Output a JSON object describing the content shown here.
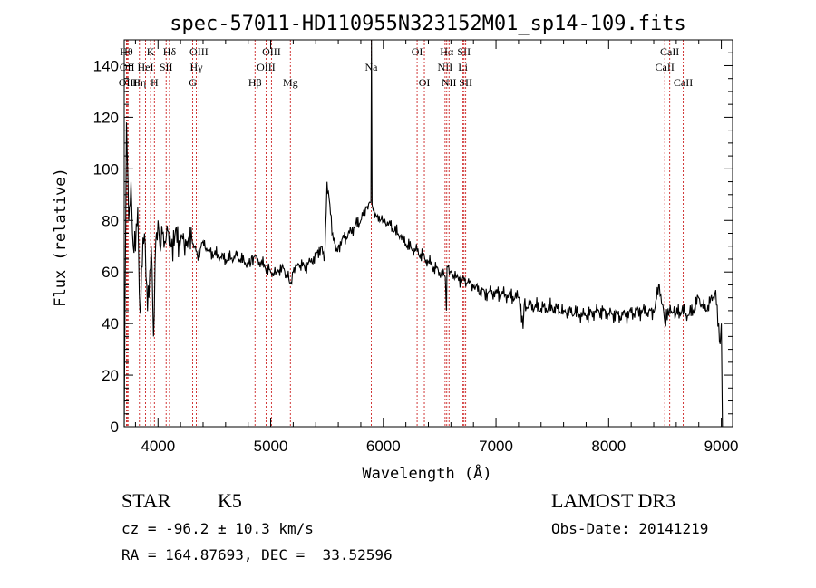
{
  "chart_data": {
    "type": "line",
    "title": "spec-57011-HD110955N323152M01_sp14-109.fits",
    "xlabel": "Wavelength (Å)",
    "ylabel": "Flux (relative)",
    "xlim": [
      3700,
      9100
    ],
    "ylim": [
      0,
      150
    ],
    "xticks": [
      4000,
      5000,
      6000,
      7000,
      8000,
      9000
    ],
    "yticks": [
      0,
      20,
      40,
      60,
      80,
      100,
      120,
      140
    ],
    "series": [
      {
        "name": "flux",
        "x": [
          3700,
          3720,
          3740,
          3760,
          3780,
          3800,
          3820,
          3840,
          3860,
          3880,
          3900,
          3920,
          3940,
          3960,
          3980,
          4000,
          4020,
          4040,
          4060,
          4080,
          4100,
          4150,
          4200,
          4250,
          4300,
          4350,
          4400,
          4450,
          4500,
          4600,
          4700,
          4800,
          4860,
          4900,
          4950,
          5000,
          5050,
          5100,
          5150,
          5180,
          5200,
          5250,
          5300,
          5350,
          5400,
          5450,
          5480,
          5500,
          5550,
          5580,
          5600,
          5650,
          5700,
          5750,
          5800,
          5850,
          5890,
          5895,
          5900,
          5910,
          5950,
          6000,
          6050,
          6100,
          6150,
          6200,
          6250,
          6300,
          6350,
          6400,
          6450,
          6500,
          6550,
          6560,
          6565,
          6600,
          6650,
          6700,
          6750,
          6800,
          6900,
          7000,
          7100,
          7200,
          7240,
          7250,
          7300,
          7400,
          7500,
          7600,
          7700,
          7800,
          7900,
          8000,
          8100,
          8200,
          8300,
          8400,
          8450,
          8500,
          8540,
          8600,
          8650,
          8700,
          8750,
          8800,
          8850,
          8900,
          8950,
          8990,
          9000,
          9010
        ],
        "values": [
          0,
          118,
          80,
          95,
          70,
          68,
          85,
          45,
          62,
          75,
          55,
          50,
          70,
          35,
          72,
          80,
          68,
          75,
          72,
          78,
          70,
          74,
          72,
          70,
          73,
          66,
          72,
          68,
          67,
          65,
          66,
          63,
          66,
          64,
          62,
          60,
          60,
          62,
          58,
          56,
          60,
          63,
          62,
          64,
          66,
          70,
          65,
          95,
          75,
          68,
          70,
          73,
          75,
          78,
          80,
          85,
          87,
          150,
          86,
          84,
          82,
          80,
          79,
          76,
          74,
          71,
          69,
          68,
          66,
          64,
          62,
          60,
          58,
          45,
          62,
          60,
          58,
          57,
          56,
          54,
          52,
          52,
          51,
          50,
          38,
          47,
          47,
          46,
          46,
          45,
          44,
          43,
          45,
          44,
          43,
          44,
          45,
          44,
          55,
          40,
          45,
          44,
          45,
          43,
          45,
          50,
          45,
          48,
          53,
          32,
          40,
          0
        ]
      }
    ],
    "line_markers": [
      {
        "x": 3720,
        "row": 0,
        "label": "Hθ"
      },
      {
        "x": 3726,
        "row": 1,
        "label": "OII"
      },
      {
        "x": 3734,
        "row": 2,
        "label": "OIII"
      },
      {
        "x": 3835,
        "row": 2,
        "label": "Hη"
      },
      {
        "x": 3889,
        "row": 1,
        "label": "HeI"
      },
      {
        "x": 3934,
        "row": 0,
        "label": "K"
      },
      {
        "x": 3968,
        "row": 2,
        "label": "H"
      },
      {
        "x": 4072,
        "row": 1,
        "label": "SII"
      },
      {
        "x": 4102,
        "row": 0,
        "label": "Hδ"
      },
      {
        "x": 4308,
        "row": 2,
        "label": "G"
      },
      {
        "x": 4340,
        "row": 1,
        "label": "Hγ"
      },
      {
        "x": 4363,
        "row": 0,
        "label": "OIII"
      },
      {
        "x": 4861,
        "row": 2,
        "label": "Hβ"
      },
      {
        "x": 4959,
        "row": 1,
        "label": "OIII"
      },
      {
        "x": 5007,
        "row": 0,
        "label": "OIII"
      },
      {
        "x": 5175,
        "row": 2,
        "label": "Mg"
      },
      {
        "x": 5893,
        "row": 1,
        "label": "Na"
      },
      {
        "x": 6300,
        "row": 0,
        "label": "OI"
      },
      {
        "x": 6364,
        "row": 2,
        "label": "OI"
      },
      {
        "x": 6548,
        "row": 1,
        "label": "NII"
      },
      {
        "x": 6563,
        "row": 0,
        "label": "Hα"
      },
      {
        "x": 6583,
        "row": 2,
        "label": "NII"
      },
      {
        "x": 6707,
        "row": 1,
        "label": "Li"
      },
      {
        "x": 6716,
        "row": 0,
        "label": "SII"
      },
      {
        "x": 6731,
        "row": 2,
        "label": "SII"
      },
      {
        "x": 8498,
        "row": 1,
        "label": "CaII"
      },
      {
        "x": 8542,
        "row": 0,
        "label": "CaII"
      },
      {
        "x": 8662,
        "row": 2,
        "label": "CaII"
      }
    ]
  },
  "info": {
    "object_class": "STAR",
    "subclass": "K5",
    "survey": "LAMOST DR3",
    "redshift": "cz = -96.2 ± 10.3 km/s",
    "obs_date": "Obs-Date: 20141219",
    "coords": "RA = 164.87693, DEC =  33.52596"
  },
  "colors": {
    "marker": "#cc2222",
    "line": "#000000"
  }
}
